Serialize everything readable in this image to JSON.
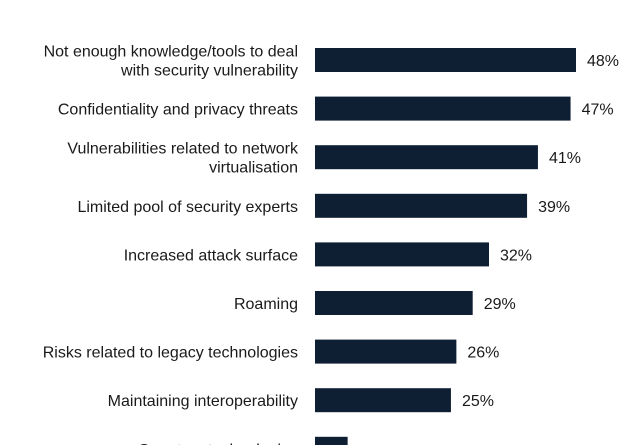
{
  "chart_data": {
    "type": "bar",
    "orientation": "horizontal",
    "categories": [
      [
        "Not enough knowledge/tools to deal",
        "with security vulnerability"
      ],
      [
        "Confidentiality and privacy threats"
      ],
      [
        "Vulnerabilities related to network",
        "virtualisation"
      ],
      [
        "Limited pool of security experts"
      ],
      [
        "Increased attack surface"
      ],
      [
        "Roaming"
      ],
      [
        "Risks related to legacy technologies"
      ],
      [
        "Maintaining interoperability"
      ],
      [
        "Quantum technologies"
      ]
    ],
    "values": [
      48,
      47,
      41,
      39,
      32,
      29,
      26,
      25,
      6
    ],
    "value_labels": [
      "48%",
      "47%",
      "41%",
      "39%",
      "32%",
      "29%",
      "26%",
      "25%",
      ""
    ],
    "bar_color": "#0f1f33",
    "title": "",
    "xlabel": "",
    "ylabel": "",
    "grid": false,
    "legend": "none"
  }
}
